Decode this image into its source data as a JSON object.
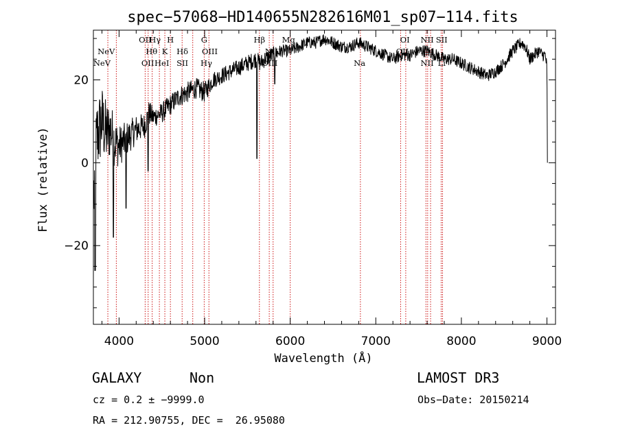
{
  "chart_data": {
    "type": "line",
    "title": "spec−57068−HD140655N282616M01_sp07−114.fits",
    "xlabel": "Wavelength (Å)",
    "ylabel": "Flux (relative)",
    "xlim": [
      3700,
      9100
    ],
    "ylim": [
      -39,
      32
    ],
    "xticks": [
      4000,
      5000,
      6000,
      7000,
      8000,
      9000
    ],
    "yticks": [
      20,
      0,
      -20
    ],
    "ytick_labels": [
      "20",
      "0",
      "−20"
    ],
    "spectrum_anchors": {
      "x": [
        3705,
        3740,
        3800,
        3850,
        3900,
        3950,
        4000,
        4100,
        4200,
        4300,
        4350,
        4400,
        4500,
        4550,
        4600,
        4650,
        4700,
        4800,
        4900,
        5000,
        5100,
        5200,
        5300,
        5400,
        5500,
        5600,
        5650,
        5700,
        5800,
        5900,
        6000,
        6100,
        6200,
        6300,
        6400,
        6500,
        6600,
        6700,
        6800,
        6900,
        7000,
        7100,
        7200,
        7300,
        7400,
        7500,
        7600,
        7700,
        7800,
        7900,
        8000,
        8100,
        8200,
        8300,
        8400,
        8500,
        8600,
        8700,
        8750,
        8800,
        8900,
        8950,
        8980,
        9000,
        9005
      ],
      "y": [
        -8,
        6,
        10,
        7,
        8,
        5,
        4,
        6,
        8,
        9,
        12,
        11,
        12,
        13,
        14,
        15,
        16,
        17,
        18,
        17,
        20,
        21,
        22,
        23,
        24,
        25,
        24,
        25,
        26,
        27,
        27,
        28,
        29,
        29,
        30,
        29,
        28,
        28,
        29,
        28,
        27,
        26,
        25,
        26,
        26,
        27,
        27,
        26,
        25,
        25,
        24,
        23,
        22,
        21,
        22,
        24,
        27,
        29,
        28,
        25,
        27,
        26,
        26,
        23,
        0
      ],
      "noise_amplitude": [
        12,
        10,
        9,
        8,
        7,
        6,
        5,
        4,
        3.5,
        3,
        3,
        2.5,
        2.5,
        2.5,
        2.5,
        2.5,
        2.5,
        2.5,
        2.5,
        2.5,
        2,
        2,
        2,
        2,
        2,
        2,
        2,
        2,
        2,
        1.5,
        1.5,
        1.5,
        1.5,
        1.5,
        1.5,
        1.5,
        1.5,
        1.5,
        1.5,
        1.5,
        1.5,
        1.5,
        1.5,
        1.5,
        1.5,
        1.5,
        1.5,
        1.5,
        1.5,
        1.5,
        1.5,
        1.5,
        1.5,
        1.5,
        1.5,
        1.5,
        1.5,
        1.5,
        1.5,
        1.5,
        1.5,
        1.5,
        1.5,
        1.5,
        0
      ]
    },
    "dips": [
      {
        "x": 3720,
        "y": -26
      },
      {
        "x": 3935,
        "y": -18
      },
      {
        "x": 4080,
        "y": -11
      },
      {
        "x": 4340,
        "y": -2
      },
      {
        "x": 5610,
        "y": 1
      },
      {
        "x": 5820,
        "y": 19
      }
    ],
    "line_markers": [
      3869,
      3968,
      4305,
      4340,
      4387,
      4471,
      4535,
      4600,
      4737,
      4861,
      4995,
      5050,
      5640,
      5755,
      5800,
      6000,
      6820,
      7290,
      7350,
      7586,
      7606,
      7640,
      7764,
      7780
    ],
    "line_annotations": [
      {
        "text": "NeV",
        "x": 3800,
        "row": 3
      },
      {
        "text": "NeV",
        "x": 3850,
        "row": 2
      },
      {
        "text": "OII",
        "x": 4305,
        "row": 1
      },
      {
        "text": "Hγ",
        "x": 4420,
        "row": 1
      },
      {
        "text": "H",
        "x": 4600,
        "row": 1
      },
      {
        "text": "Hθ",
        "x": 4380,
        "row": 2
      },
      {
        "text": "K",
        "x": 4535,
        "row": 2
      },
      {
        "text": "Hδ",
        "x": 4740,
        "row": 2
      },
      {
        "text": "OII",
        "x": 4335,
        "row": 3
      },
      {
        "text": "HeI",
        "x": 4500,
        "row": 3
      },
      {
        "text": "SII",
        "x": 4740,
        "row": 3
      },
      {
        "text": "G",
        "x": 4995,
        "row": 1
      },
      {
        "text": "OIII",
        "x": 5060,
        "row": 2
      },
      {
        "text": "Hγ",
        "x": 5020,
        "row": 3
      },
      {
        "text": "Hβ",
        "x": 5640,
        "row": 1
      },
      {
        "text": "Mg",
        "x": 5980,
        "row": 1
      },
      {
        "text": "NIII",
        "x": 5800,
        "row": 2
      },
      {
        "text": "OIII",
        "x": 5760,
        "row": 3
      },
      {
        "text": "Na",
        "x": 6810,
        "row": 3
      },
      {
        "text": "OI",
        "x": 7340,
        "row": 1
      },
      {
        "text": "OII",
        "x": 7310,
        "row": 2
      },
      {
        "text": "NII",
        "x": 7600,
        "row": 1
      },
      {
        "text": "SII",
        "x": 7770,
        "row": 1
      },
      {
        "text": "NII",
        "x": 7600,
        "row": 3
      },
      {
        "text": "Li",
        "x": 7770,
        "row": 3
      }
    ],
    "colors": {
      "spectrum": "#000000",
      "marker": "#cc1111",
      "axes": "#000000"
    }
  },
  "info": {
    "classification": "GALAXY",
    "subclass": "Non",
    "survey": "LAMOST DR3",
    "redshift": "cz = 0.2 ± −9999.0",
    "obs_date": "Obs−Date: 20150214",
    "coords": "RA = 212.90755, DEC =  26.95080"
  }
}
